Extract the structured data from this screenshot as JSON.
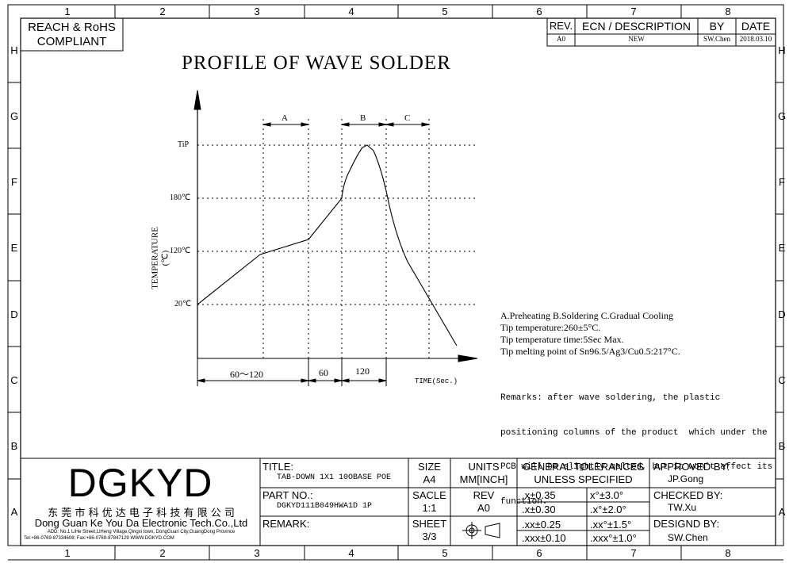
{
  "border_zones": {
    "columns": [
      "1",
      "2",
      "3",
      "4",
      "5",
      "6",
      "7",
      "8"
    ],
    "rows": [
      "H",
      "G",
      "F",
      "E",
      "D",
      "C",
      "B",
      "A"
    ]
  },
  "compliance": {
    "line1": "REACH & RoHS",
    "line2": "COMPLIANT"
  },
  "revision_block": {
    "headers": {
      "rev": "REV.",
      "ecn": "ECN / DESCRIPTION",
      "by": "BY",
      "date": "DATE"
    },
    "row": {
      "rev": "A0",
      "ecn": "NEW",
      "by": "SW.Chen",
      "date": "2018.03.10"
    }
  },
  "drawing_title": "PROFILE OF WAVE SOLDER",
  "profile_chart": {
    "y_axis_label": "TEMPERATURE (℃)",
    "y_ticks": [
      "TiP",
      "180℃",
      "120℃",
      "20℃"
    ],
    "x_axis_label": "TIME(Sec.)",
    "phases": [
      "A",
      "B",
      "C"
    ],
    "durations": [
      "60～120",
      "60",
      "120"
    ]
  },
  "notes": {
    "legend": "A.Preheating  B.Soldering  C.Gradual Cooling",
    "tip_temperature": "Tip temperature:260±5°C.",
    "tip_time": "Tip temperature time:5Sec Max.",
    "melting_point": "Tip melting point of Sn96.5/Ag3/Cu0.5:217°C.",
    "remarks_1": "Remarks: after wave soldering, the plastic",
    "remarks_2": "positioning columns of the product  which under the",
    "remarks_3": "PCB will be slightly melted, but it won't affect its",
    "remarks_4": "function."
  },
  "title_block": {
    "company_logo": "DGKYD",
    "company_cn": "东 莞 市 科 优 达 电 子 科 技 有 限 公 司",
    "company_en": "Dong Guan Ke You Da Electronic Tech.Co.,Ltd",
    "company_address": "ADD: No.1 LiHe Street,LiHeng Village,Qingxi town, DongGuan City,GuangDong Province",
    "company_contact": "Tel:+86-0769-87334608; Fax:+86-0769-87847129  WWW.DGKYD.COM",
    "title_label": "TITLE:",
    "title_value": "TAB-DOWN 1X1 10OBASE POE",
    "part_label": "PART NO.:",
    "part_value": "DGKYD111B049HWA1D 1P",
    "remark_label": "REMARK:",
    "size_label": "SIZE",
    "size_value": "A4",
    "units_label": "UNITS",
    "units_value": "MM[INCH]",
    "scale_label": "SACLE",
    "scale_value": "1:1",
    "rev_label": "REV",
    "rev_value": "A0",
    "sheet_label": "SHEET",
    "sheet_value": "3/3",
    "tolerances_title_1": "GENERAL TOLERANCES",
    "tolerances_title_2": "UNLESS SPECIFIED",
    "tolerances": [
      [
        ".x±0.35",
        "x°±3.0°"
      ],
      [
        ".x±0.30",
        ".x°±2.0°"
      ],
      [
        ".xx±0.25",
        ".xx°±1.5°"
      ],
      [
        ".xxx±0.10",
        ".xxx°±1.0°"
      ]
    ],
    "approved_label": "APPROVED BY:",
    "approved_value": "JP.Gong",
    "checked_label": "CHECKED BY:",
    "checked_value": "TW.Xu",
    "designed_label": "DESIGND BY:",
    "designed_value": "SW.Chen"
  }
}
